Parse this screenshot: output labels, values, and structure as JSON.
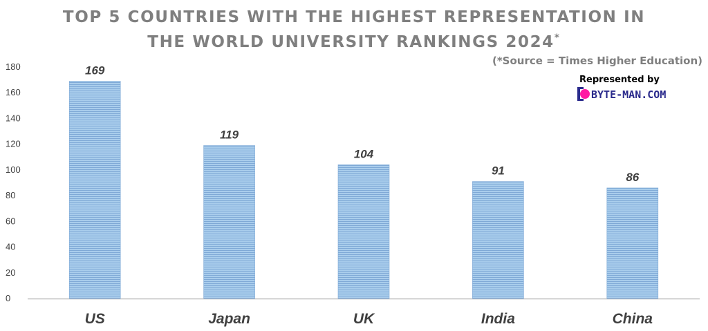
{
  "title_line1": "TOP 5 COUNTRIES WITH THE HIGHEST REPRESENTATION IN",
  "title_line2": "THE WORLD UNIVERSITY RANKINGS 2024",
  "title_mark": "*",
  "source": "(*Source = Times Higher Education)",
  "logo": {
    "caption": "Represented by",
    "text": "BYTE-MAN.COM",
    "accent_color": "#ff1aa3",
    "text_color": "#2a2a8c"
  },
  "colors": {
    "bar_fill": "#9dc3e6",
    "bar_stripe": "#7fa9d6",
    "axis": "#bfbfbf",
    "title": "#7f7f7f"
  },
  "chart_data": {
    "type": "bar",
    "title": "TOP 5 COUNTRIES WITH THE HIGHEST REPRESENTATION IN THE WORLD UNIVERSITY RANKINGS 2024*",
    "categories": [
      "US",
      "Japan",
      "UK",
      "India",
      "China"
    ],
    "values": [
      169,
      119,
      104,
      91,
      86
    ],
    "data_labels": [
      "169",
      "119",
      "104",
      "91",
      "86"
    ],
    "ylim": [
      0,
      180
    ],
    "yticks": [
      0,
      20,
      40,
      60,
      80,
      100,
      120,
      140,
      160,
      180
    ],
    "ytick_labels": [
      "0",
      "20",
      "40",
      "60",
      "80",
      "100",
      "120",
      "140",
      "160",
      "180"
    ],
    "xlabel": "",
    "ylabel": "",
    "grid": false,
    "legend": "none"
  }
}
